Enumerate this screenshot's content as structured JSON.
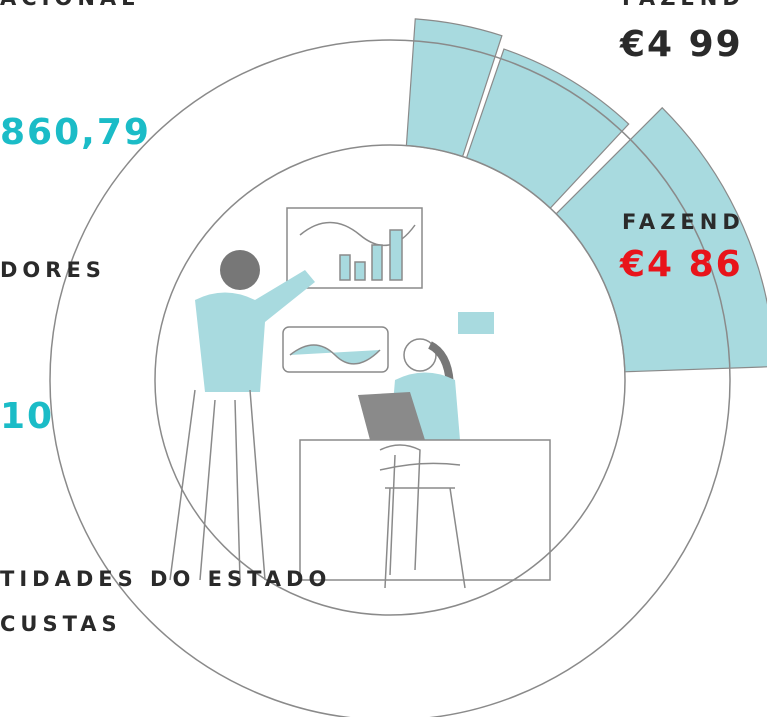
{
  "labels": {
    "top_left": "ACIONAL",
    "left_value_1": "860,79",
    "left_label_2": "DORES",
    "left_value_2": "10",
    "bottom_label_line_1": "TIDADES DO ESTADO",
    "bottom_label_line_2": "CUSTAS",
    "right_label_1": "FAZEND",
    "right_value_1": "€4 99",
    "right_label_2": "FAZEND",
    "right_value_2": "€4 86"
  }
}
